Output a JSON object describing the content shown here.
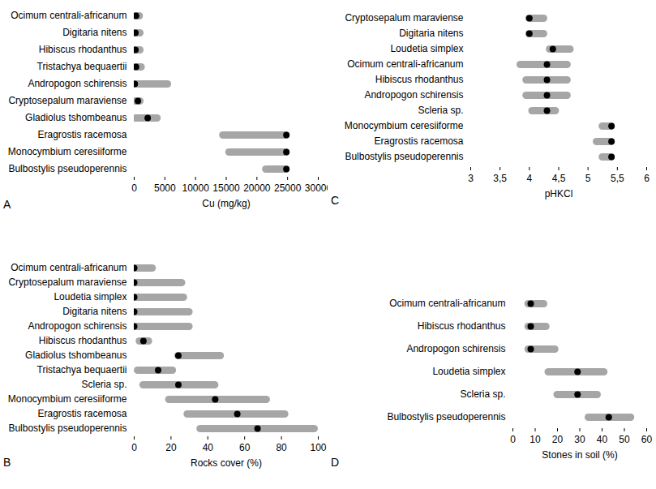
{
  "chart_data": [
    {
      "type": "range",
      "title": "A",
      "x_label": "Cu (mg/kg)",
      "color": "#a6a6a6",
      "categories": [
        "Ocimum centrali-africanum",
        "Digitaria nitens",
        "Hibiscus rhodanthus",
        "Tristachya bequaertii",
        "Andropogon schirensis",
        "Cryptosepalum maraviense",
        "Gladiolus tshombeanus",
        "Eragrostis racemosa",
        "Monocymbium ceresiiforme",
        "Bulbostylis pseudoperennis"
      ],
      "values": [
        300,
        200,
        200,
        300,
        100,
        600,
        2200,
        24800,
        24800,
        24800
      ],
      "low": [
        100,
        0,
        0,
        0,
        0,
        200,
        300,
        14500,
        15500,
        21500
      ],
      "high": [
        900,
        1000,
        1000,
        1200,
        5500,
        1000,
        3800,
        24800,
        24800,
        24800
      ],
      "xlim": [
        0,
        30000
      ],
      "xticks": [
        0,
        5000,
        10000,
        15000,
        20000,
        25000,
        30000
      ]
    },
    {
      "type": "range",
      "title": "B",
      "x_label": "Rocks cover (%)",
      "color": "#a6a6a6",
      "categories": [
        "Ocimum centrali-africanum",
        "Cryptosepalum maraviense",
        "Loudetia simplex",
        "Digitaria nitens",
        "Andropogon schirensis",
        "Hibiscus rhodanthus",
        "Gladiolus tshombeanus",
        "Tristachya bequaertii",
        "Scleria sp.",
        "Monocymbium ceresiiforme",
        "Eragrostis racemosa",
        "Bulbostylis pseudoperennis"
      ],
      "values": [
        0,
        0,
        0,
        0,
        0,
        5,
        24,
        13,
        24,
        44,
        56,
        67
      ],
      "low": [
        0,
        0,
        0,
        0,
        0,
        3,
        24,
        2,
        5,
        19,
        29,
        36
      ],
      "high": [
        10,
        26,
        27,
        30,
        30,
        8,
        47,
        21,
        44,
        72,
        82,
        98
      ],
      "xlim": [
        0,
        100
      ],
      "xticks": [
        0,
        20,
        40,
        60,
        80,
        100
      ]
    },
    {
      "type": "range",
      "title": "C",
      "x_label": "pHKCl",
      "color": "#a6a6a6",
      "categories": [
        "Cryptosepalum maraviense",
        "Digitaria nitens",
        "Loudetia simplex",
        "Ocimum centrali-africanum",
        "Hibiscus rhodanthus",
        "Andropogon schirensis",
        "Scleria sp.",
        "Monocymbium ceresiiforme",
        "Eragrostis racemosa",
        "Bulbostylis pseudoperennis"
      ],
      "values": [
        4.0,
        4.0,
        4.4,
        4.3,
        4.3,
        4.3,
        4.3,
        5.4,
        5.4,
        5.4
      ],
      "low": [
        4.0,
        4.0,
        4.35,
        3.85,
        3.95,
        3.95,
        4.05,
        5.25,
        5.15,
        5.25
      ],
      "high": [
        4.25,
        4.25,
        4.7,
        4.65,
        4.65,
        4.65,
        4.45,
        5.4,
        5.4,
        5.4
      ],
      "xlim": [
        3,
        6
      ],
      "xticks": [
        3,
        {
          "value": 3.5,
          "label": "3,5"
        },
        4,
        {
          "value": 4.5,
          "label": "4,5"
        },
        5,
        {
          "value": 5.5,
          "label": "5,5"
        },
        6
      ]
    },
    {
      "type": "range",
      "title": "D",
      "x_label": "Stones in soil (%)",
      "color": "#a6a6a6",
      "categories": [
        "Ocimum centrali-africanum",
        "Hibiscus rhodanthus",
        "Andropogon schirensis",
        "Loudetia simplex",
        "Scleria sp.",
        "Bulbostylis pseudoperennis"
      ],
      "values": [
        8,
        8,
        8,
        29,
        29,
        43
      ],
      "low": [
        7,
        7,
        7,
        16,
        20,
        34
      ],
      "high": [
        14,
        15,
        19,
        41,
        38,
        53
      ],
      "xlim": [
        0,
        60
      ],
      "xticks": [
        0,
        10,
        20,
        30,
        40,
        50,
        60
      ]
    }
  ]
}
